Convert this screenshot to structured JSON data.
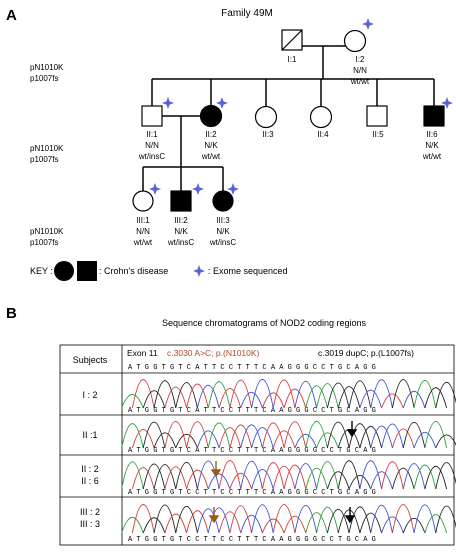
{
  "panel_a": {
    "panel_label": "A",
    "family_title": "Family 49M",
    "row_labels": [
      {
        "variant1": "pN1010K",
        "variant2": "p1007fs"
      },
      {
        "variant1": "pN1010K",
        "variant2": "p1007fs"
      },
      {
        "variant1": "pN1010K",
        "variant2": "p1007fs"
      }
    ],
    "individuals": {
      "I1": {
        "id": "I:1"
      },
      "I2": {
        "id": "I:2",
        "g1": "N/N",
        "g2": "wt/wt"
      },
      "II1": {
        "id": "II:1",
        "g1": "N/N",
        "g2": "wt/insC"
      },
      "II2": {
        "id": "II:2",
        "g1": "N/K",
        "g2": "wt/wt"
      },
      "II3": {
        "id": "II:3"
      },
      "II4": {
        "id": "II:4"
      },
      "II5": {
        "id": "II:5"
      },
      "II6": {
        "id": "II:6",
        "g1": "N/K",
        "g2": "wt/wt"
      },
      "III1": {
        "id": "III:1",
        "g1": "N/N",
        "g2": "wt/wt"
      },
      "III2": {
        "id": "III:2",
        "g1": "N/K",
        "g2": "wt/insC"
      },
      "III3": {
        "id": "III:3",
        "g1": "N/K",
        "g2": "wt/insC"
      }
    },
    "key": {
      "label": "KEY :",
      "crohns": ": Crohn's disease",
      "exome": ": Exome sequenced"
    }
  },
  "panel_b": {
    "panel_label": "B",
    "title": "Sequence chromatograms of NOD2 coding regions",
    "header_subjects": "Subjects",
    "header_exon": "Exon 11",
    "header_var1": "c.3030 A>C; p.(N1010K)",
    "header_var2": "c.3019 dupC; p.(L1007fs)",
    "ref_sequence": "A T G G T G T C A T T C C T T T C A A G G G C C T G C A G G",
    "rows": [
      {
        "subjects": [
          "I : 2"
        ],
        "sequence": "A T G G T G T C A T T C C T T T C A A G G G C C T G C A G G"
      },
      {
        "subjects": [
          "II :1"
        ],
        "sequence": "A T G G T G T C A T T C C T T T C A A G G G G C C T G C A G"
      },
      {
        "subjects": [
          "II : 2",
          "II : 6"
        ],
        "sequence": "A T G G T G T C C T T C C T T T C A A G G G C C T G C A G G"
      },
      {
        "subjects": [
          "III : 2",
          "III : 3"
        ],
        "sequence": "A T G G T G T C C T T C C T T T C A A G G G G C C T G C A G"
      }
    ],
    "colors": {
      "variant_text": "#b5462b",
      "arrow_c3030": "#9a5b14",
      "arrow_dup": "#000000"
    }
  }
}
